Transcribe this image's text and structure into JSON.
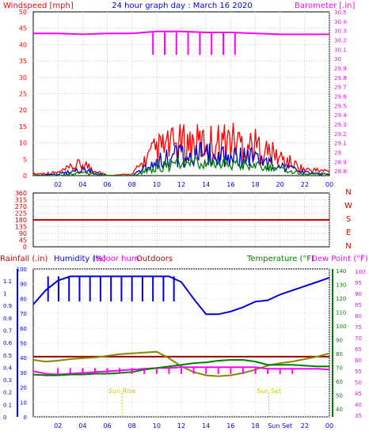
{
  "header": {
    "left": "Windspeed [mph]",
    "center": "24 hour graph day : March 16 2020",
    "right": "Barometer [.in]"
  },
  "colors": {
    "wind_gust": "#ff0000",
    "wind_avg": "#0000cc",
    "wind_low": "#008000",
    "barometer": "#ff00ff",
    "direction": "#cc0000",
    "humidity_out": "#0000dd",
    "humidity_in": "#990000",
    "temperature": "#888800",
    "dewpoint": "#ff00ff",
    "temp_green": "#008000",
    "rain": "#0000ff",
    "axis_red": "#cc0000",
    "sun": "#cccc00"
  },
  "x_ticks": [
    "02",
    "04",
    "06",
    "08",
    "10",
    "12",
    "14",
    "16",
    "18",
    "20",
    "22",
    "00"
  ],
  "x_ticks_bottom": [
    "02",
    "04",
    "06",
    "08",
    "10",
    "12",
    "14",
    "16",
    "18",
    "Sun Set",
    "22",
    "00"
  ],
  "chart_data": [
    {
      "type": "line",
      "title": "24 hour graph day : March 16 2020",
      "ylabel": "Windspeed [mph]",
      "y2label": "Barometer [.in]",
      "ylim": [
        0,
        50
      ],
      "y2lim": [
        28.75,
        30.5
      ],
      "yticks": [
        "0",
        "5",
        "10",
        "15",
        "20",
        "25",
        "30",
        "35",
        "40",
        "45",
        "50"
      ],
      "y2ticks": [
        "28.8",
        "28.9",
        "29",
        "29.1",
        "29.2",
        "29.3",
        "29.4",
        "29.5",
        "29.6",
        "29.7",
        "29.8",
        "29.9",
        "30",
        "30.1",
        "30.2",
        "30.3",
        "30.4",
        "30.5"
      ],
      "x": [
        0,
        2,
        4,
        6,
        8,
        10,
        12,
        14,
        16,
        18,
        20,
        22,
        24
      ],
      "series": [
        {
          "values": [
            0.5,
            1,
            4,
            0,
            0.5,
            9,
            11,
            11,
            12,
            10,
            6,
            2,
            1.5
          ]
        },
        {
          "values": [
            0,
            0.5,
            2,
            0,
            0,
            5,
            7,
            7,
            7,
            6,
            3,
            1,
            0.5
          ]
        },
        {
          "values": [
            0,
            0,
            1,
            0,
            0,
            3,
            4,
            4,
            4,
            3,
            2,
            0.5,
            0.5
          ]
        },
        {
          "values": [
            30.27,
            30.27,
            30.26,
            30.27,
            30.27,
            30.29,
            30.29,
            30.28,
            30.28,
            30.27,
            30.26,
            30.26,
            30.26
          ]
        }
      ]
    },
    {
      "type": "line",
      "yticks": [
        "0",
        "45",
        "90",
        "135",
        "180",
        "225",
        "270",
        "315",
        "360"
      ],
      "y2ticks": [
        "N",
        "W",
        "S",
        "E",
        "N"
      ],
      "ylim": [
        0,
        360
      ],
      "x": [
        0,
        24
      ],
      "series": [
        {
          "values": [
            180,
            180
          ]
        }
      ]
    },
    {
      "type": "line",
      "ylabel": "Rainfall (.in)",
      "ylabel2": "Humidity (%)",
      "ylabel3": "Indoor hum",
      "ylabel4": "Outdoors",
      "y2label": "Temperature (°F)",
      "y3label": "Dew Point (°F)",
      "rain_ticks": [
        "0",
        "0.1",
        "0.2",
        "0.3",
        "0.4",
        "0.5",
        "0.6",
        "0.7",
        "0.8",
        "0.9",
        "1",
        "1.1"
      ],
      "hum_ticks": [
        "0",
        "10",
        "20",
        "30",
        "40",
        "50",
        "60",
        "70",
        "80",
        "90",
        "100"
      ],
      "temp_ticks": [
        "40",
        "50",
        "60",
        "70",
        "80",
        "90",
        "100",
        "110",
        "120",
        "130",
        "140"
      ],
      "dew_ticks": [
        "35",
        "40",
        "45",
        "50",
        "55",
        "60",
        "65",
        "70",
        "75",
        "80",
        "85",
        "90",
        "95",
        "100"
      ],
      "hum_ylim": [
        0,
        100
      ],
      "temp_ylim": [
        35,
        105
      ],
      "x": [
        0,
        1,
        2,
        3,
        4,
        5,
        6,
        7,
        8,
        9,
        10,
        11,
        12,
        13,
        14,
        15,
        16,
        17,
        18,
        19,
        20,
        21,
        22,
        23,
        24
      ],
      "series": [
        {
          "values": [
            80,
            90,
            97,
            100,
            100,
            100,
            100,
            100,
            100,
            100,
            100,
            100,
            96,
            84,
            73,
            73,
            75,
            78,
            82,
            83,
            87,
            90,
            93,
            96,
            99
          ]
        },
        {
          "values": [
            74,
            74,
            74,
            74,
            74,
            74,
            74,
            74,
            74,
            74,
            74,
            74,
            74,
            74,
            74,
            74,
            74,
            74,
            74,
            74,
            74,
            74,
            74,
            74,
            74
          ]
        },
        {
          "values": [
            70,
            68,
            69,
            71,
            72,
            73,
            75,
            77,
            78,
            79,
            80,
            72,
            62,
            55,
            51,
            50,
            51,
            54,
            58,
            63,
            66,
            68,
            71,
            74,
            78
          ]
        },
        {
          "values": [
            56,
            53,
            52,
            53,
            54,
            55,
            56,
            57,
            58,
            59,
            60,
            60,
            61,
            61,
            61,
            61,
            61,
            61,
            61,
            59,
            59,
            59,
            59,
            59,
            58
          ]
        },
        {
          "values": [
            52,
            51,
            51,
            52,
            52,
            53,
            53,
            54,
            55,
            58,
            60,
            62,
            64,
            66,
            67,
            69,
            70,
            70,
            68,
            64,
            64,
            64,
            63,
            62,
            62
          ]
        }
      ],
      "annotations": [
        "Sun Rise",
        "Sun Set"
      ]
    }
  ]
}
